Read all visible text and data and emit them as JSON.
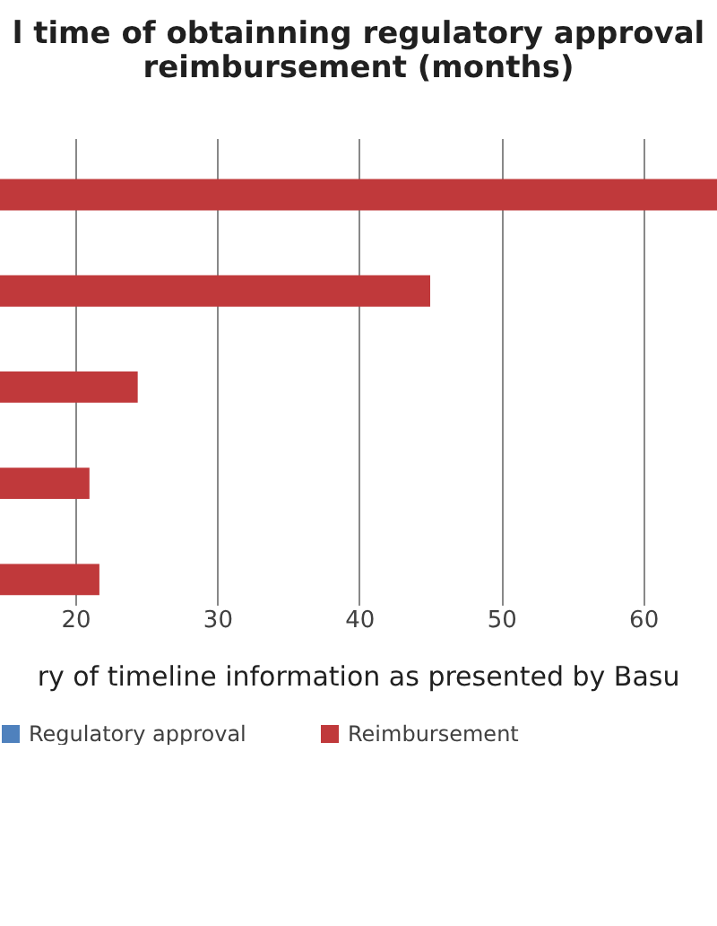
{
  "chart_data": {
    "type": "bar",
    "orientation": "horizontal",
    "title": [
      "l time of obtainning regulatory approval",
      "reimbursement (months)"
    ],
    "categories": [
      null,
      null,
      null,
      null,
      null
    ],
    "series": [
      {
        "name": "Regulatory approval",
        "color": "#4f81bd",
        "values": [
          null,
          null,
          null,
          null,
          null
        ]
      },
      {
        "name": "Reimbursement",
        "color": "#c0393b",
        "values": [
          65.2,
          45,
          24.4,
          21.0,
          21.7
        ]
      }
    ],
    "xlim": [
      14.7,
      65.2
    ],
    "xticks": [
      20,
      30,
      40,
      50,
      60
    ],
    "grid": "x",
    "legend": "bottom",
    "tick_labels": "x",
    "annotations": [
      "ry of timeline information as presented by Basu"
    ]
  }
}
